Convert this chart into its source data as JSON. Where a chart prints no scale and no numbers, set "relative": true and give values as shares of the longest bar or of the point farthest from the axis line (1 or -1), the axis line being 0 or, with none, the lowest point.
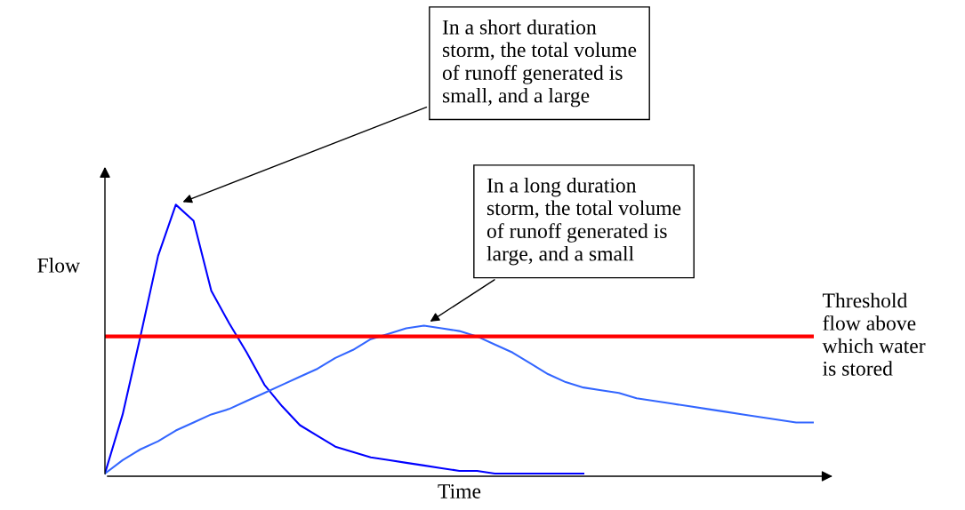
{
  "chart_data": {
    "type": "line",
    "relative": true,
    "xlabel": "Time",
    "ylabel": "Flow",
    "categories": [
      null,
      null,
      null,
      null,
      null,
      null,
      null,
      null,
      null,
      null,
      null,
      null,
      null,
      null,
      null,
      null,
      null,
      null,
      null,
      null,
      null,
      null,
      null,
      null,
      null,
      null,
      null,
      null,
      null,
      null,
      null,
      null,
      null,
      null,
      null,
      null,
      null,
      null,
      null,
      null,
      null
    ],
    "series": [
      {
        "color": "#0000ff",
        "values": [
          0,
          0.22,
          0.51,
          0.81,
          1.0,
          0.94,
          0.68,
          0.56,
          0.45,
          0.33,
          0.25,
          0.18,
          0.14,
          0.1,
          0.08,
          0.06,
          0.05,
          0.04,
          0.03,
          0.02,
          0.01,
          0.01,
          0,
          0,
          0,
          0,
          0,
          0,
          null,
          null,
          null,
          null,
          null,
          null,
          null,
          null,
          null,
          null,
          null,
          null,
          null
        ]
      },
      {
        "color": "#3366ff",
        "values": [
          0,
          0.05,
          0.09,
          0.12,
          0.16,
          0.19,
          0.22,
          0.24,
          0.27,
          0.3,
          0.33,
          0.36,
          0.39,
          0.43,
          0.46,
          0.5,
          0.52,
          0.54,
          0.55,
          0.54,
          0.53,
          0.51,
          0.48,
          0.45,
          0.41,
          0.37,
          0.34,
          0.32,
          0.31,
          0.3,
          0.28,
          0.27,
          0.26,
          0.25,
          0.24,
          0.23,
          0.22,
          0.21,
          0.2,
          0.19,
          0.19
        ]
      }
    ],
    "ref_lines": [
      {
        "axis": "y",
        "value": 0.51,
        "label": "Threshold\nflow above\nwhich water\nis stored",
        "color": "#ff0000",
        "line_style": "solid"
      }
    ],
    "annotations": [
      "In a short duration\nstorm, the total volume\nof runoff generated is\nsmall, and a large",
      "In a long duration\nstorm, the total volume\nof runoff generated is\nlarge, and a small"
    ],
    "legend": false,
    "marker": "none",
    "line_style": "solid"
  }
}
